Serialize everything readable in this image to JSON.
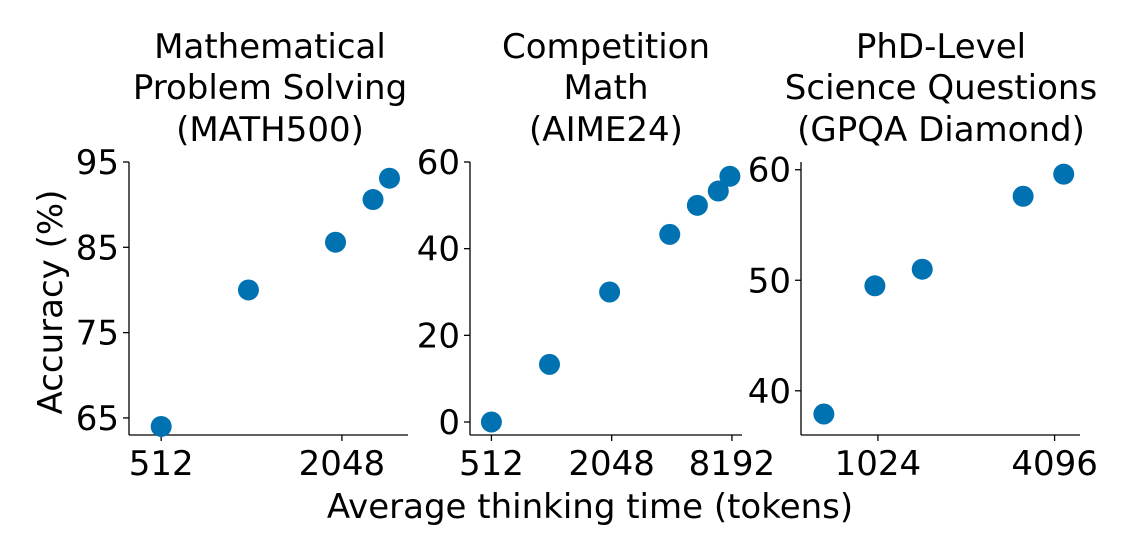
{
  "figure": {
    "ylabel": "Accuracy (%)",
    "xlabel": "Average thinking time (tokens)",
    "marker_color": "#0072b2"
  },
  "chart_data": [
    {
      "type": "scatter",
      "title": [
        "Mathematical",
        "Problem Solving",
        "(MATH500)"
      ],
      "xscale": "log2",
      "x_ticks": [
        512,
        2048
      ],
      "x_tick_labels": [
        "512",
        "2048"
      ],
      "y_ticks": [
        65,
        75,
        85,
        95
      ],
      "y_tick_labels": [
        "65",
        "75",
        "85",
        "95"
      ],
      "xlim": [
        400,
        3400
      ],
      "ylim": [
        63,
        95
      ],
      "grid": false,
      "points": [
        {
          "x": 512,
          "y": 64.0
        },
        {
          "x": 1000,
          "y": 80.0
        },
        {
          "x": 1950,
          "y": 85.6
        },
        {
          "x": 2600,
          "y": 90.6
        },
        {
          "x": 2950,
          "y": 93.1
        }
      ]
    },
    {
      "type": "scatter",
      "title": [
        "Competition",
        "Math",
        "(AIME24)"
      ],
      "xscale": "log2",
      "x_ticks": [
        512,
        2048,
        8192
      ],
      "x_tick_labels": [
        "512",
        "2048",
        "8192"
      ],
      "y_ticks": [
        0,
        20,
        40,
        60
      ],
      "y_tick_labels": [
        "0",
        "20",
        "40",
        "60"
      ],
      "xlim": [
        400,
        9200
      ],
      "ylim": [
        -3,
        60
      ],
      "grid": false,
      "points": [
        {
          "x": 512,
          "y": 0.0
        },
        {
          "x": 1000,
          "y": 13.3
        },
        {
          "x": 2000,
          "y": 30.0
        },
        {
          "x": 4000,
          "y": 43.3
        },
        {
          "x": 5500,
          "y": 50.0
        },
        {
          "x": 7000,
          "y": 53.3
        },
        {
          "x": 8000,
          "y": 56.7
        }
      ]
    },
    {
      "type": "scatter",
      "title": [
        "PhD-Level",
        "Science Questions",
        "(GPQA Diamond)"
      ],
      "xscale": "log2",
      "x_ticks": [
        1024,
        4096
      ],
      "x_tick_labels": [
        "1024",
        "4096"
      ],
      "y_ticks": [
        40,
        50,
        60
      ],
      "y_tick_labels": [
        "40",
        "50",
        "60"
      ],
      "xlim": [
        560,
        5000
      ],
      "ylim": [
        36,
        60.7
      ],
      "grid": false,
      "points": [
        {
          "x": 670,
          "y": 37.9
        },
        {
          "x": 1000,
          "y": 49.5
        },
        {
          "x": 1450,
          "y": 51.0
        },
        {
          "x": 3200,
          "y": 57.6
        },
        {
          "x": 4400,
          "y": 59.6
        }
      ]
    }
  ]
}
